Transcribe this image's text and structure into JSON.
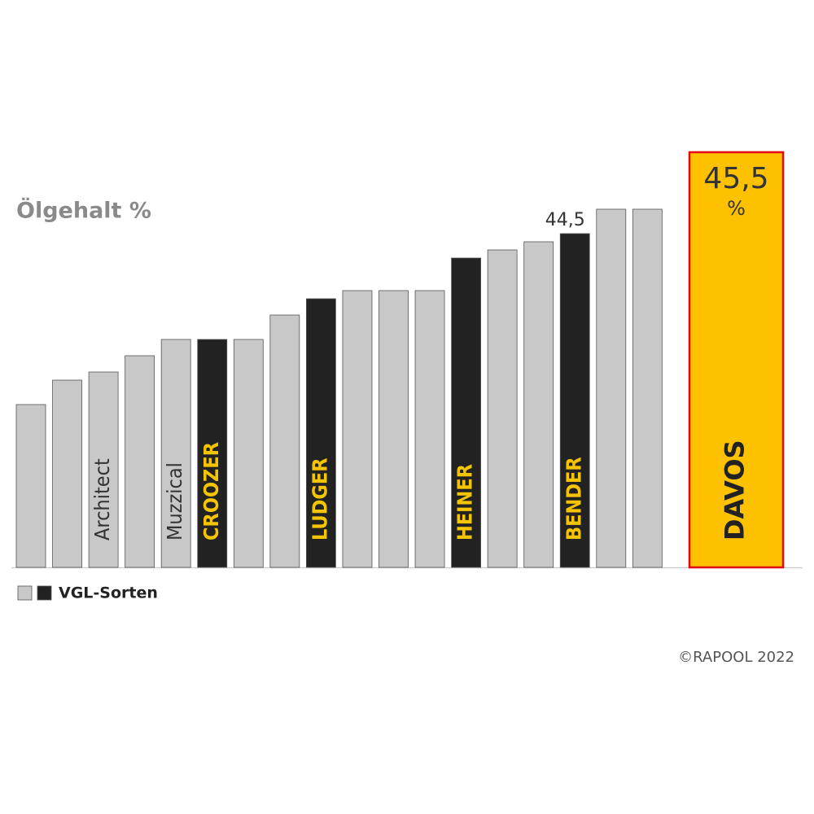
{
  "chart_data": {
    "type": "bar",
    "title": "Ölgehalt %",
    "categories": [
      null,
      null,
      "Architect",
      null,
      "Muzzical",
      "CROOZER",
      null,
      null,
      "LUDGER",
      null,
      null,
      null,
      "HEINER",
      null,
      null,
      "BENDER",
      null,
      null,
      "DAVOS"
    ],
    "values": [
      42.4,
      42.7,
      42.8,
      43.0,
      43.2,
      43.2,
      43.2,
      43.5,
      43.7,
      43.8,
      43.8,
      43.8,
      44.2,
      44.3,
      44.4,
      44.5,
      44.8,
      44.8,
      45.5
    ],
    "value_labels": [
      null,
      null,
      null,
      null,
      null,
      null,
      null,
      null,
      null,
      null,
      null,
      null,
      null,
      null,
      null,
      "44,5",
      null,
      null,
      "45,5"
    ],
    "value_label_unit": "%",
    "colors": [
      "#c8c8c8",
      "#c8c8c8",
      "#c8c8c8",
      "#c8c8c8",
      "#c8c8c8",
      "#222222",
      "#c8c8c8",
      "#c8c8c8",
      "#222222",
      "#c8c8c8",
      "#c8c8c8",
      "#c8c8c8",
      "#222222",
      "#c8c8c8",
      "#c8c8c8",
      "#222222",
      "#c8c8c8",
      "#c8c8c8",
      "#fdc100"
    ],
    "ylim": [
      40.4,
      45.6
    ],
    "legend": {
      "label": "VGL-Sorten",
      "colors": [
        "#c8c8c8",
        "#222222"
      ]
    },
    "source": "©RAPOOL 2022"
  }
}
